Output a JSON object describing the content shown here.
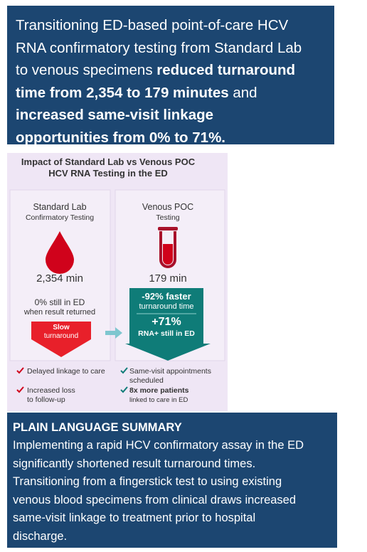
{
  "header": {
    "lines": [
      [
        {
          "text": "Transitioning ED-based point-of-care HCV"
        }
      ],
      [
        {
          "text": "RNA confirmatory testing from Standard Lab"
        }
      ],
      [
        {
          "text": "to venous specimens"
        },
        {
          "text": "reduced turnaround",
          "bold": true
        }
      ],
      [
        {
          "text": "time from 2,354 to 179 minutes",
          "bold": true
        },
        {
          "text": "and"
        }
      ],
      [
        {
          "text": "increased same-visit linkage",
          "bold": true
        }
      ],
      [
        {
          "text": "opportunities from 0% to 71%.",
          "bold": true
        }
      ]
    ]
  },
  "infographic": {
    "title": [
      "Impact of Standard Lab vs Venous POC",
      "HCV RNA Testing in the ED"
    ],
    "left": {
      "heading": "Standard Lab",
      "subheading": "Confirmatory Testing",
      "value": "2,354 min",
      "status": [
        "0% still in ED",
        "when result returned"
      ],
      "badge": [
        "Slow",
        "turnaround"
      ],
      "bullets": [
        [
          "Delayed linkage to care"
        ],
        [
          "Increased loss",
          "to follow-up"
        ]
      ]
    },
    "right": {
      "heading": "Venous POC",
      "subheading": "Testing",
      "value": "179 min",
      "stat1": [
        "-92% faster",
        "turnaround time"
      ],
      "stat2": [
        "+71%",
        "RNA+ still in ED"
      ],
      "bullets": [
        [
          "Same-visit appointments",
          "scheduled"
        ],
        [
          "8x more patients",
          "linked to care in ED"
        ]
      ]
    }
  },
  "summary": {
    "title": "PLAIN LANGUAGE SUMMARY",
    "lines": [
      "Implementing a rapid HCV confirmatory assay in the ED",
      "significantly shortened result turnaround times.",
      "Transitioning from a fingerstick test to using existing",
      "venous blood specimens from clinical draws increased",
      "same-visit linkage to treatment prior to hospital",
      "discharge."
    ]
  }
}
